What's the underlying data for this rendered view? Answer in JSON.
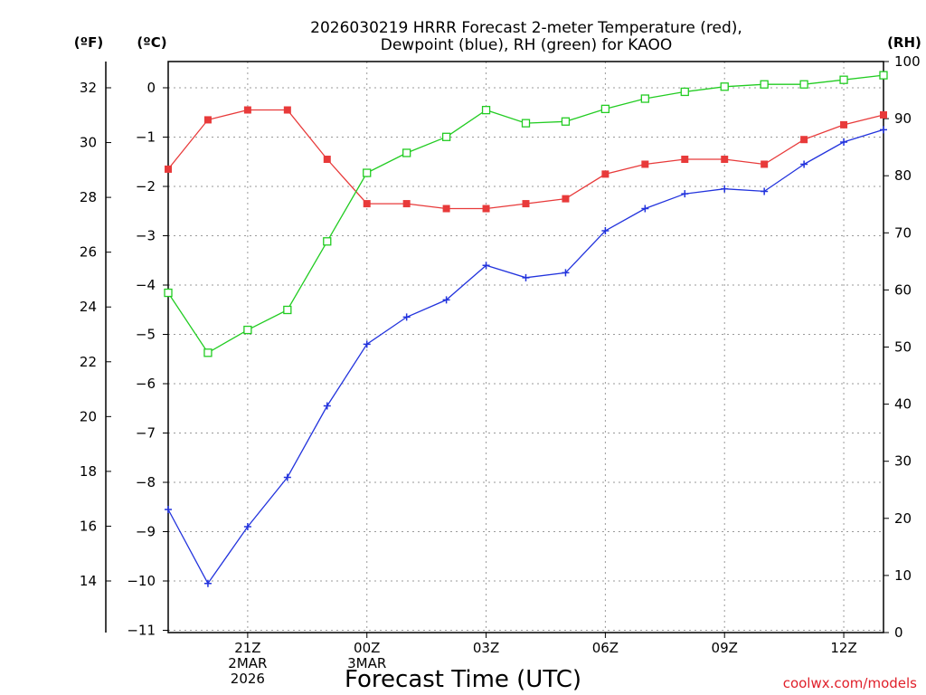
{
  "chart_data": {
    "type": "line",
    "title_line1": "2026030219 HRRR Forecast 2-meter Temperature (red),",
    "title_line2": "Dewpoint (blue), RH (green) for KAOO",
    "xlabel": "Forecast Time (UTC)",
    "unit_f": "(ºF)",
    "unit_c": "(ºC)",
    "unit_rh": "(RH)",
    "credit": "coolwx.com/models",
    "x_hours": [
      19,
      20,
      21,
      22,
      23,
      24,
      25,
      26,
      27,
      28,
      29,
      30,
      31,
      32,
      33,
      34,
      35,
      36,
      37
    ],
    "xlim": [
      19,
      37
    ],
    "x_ticks": [
      {
        "hour": 21,
        "lines": [
          "21Z",
          "2MAR",
          "2026"
        ]
      },
      {
        "hour": 24,
        "lines": [
          "00Z",
          "3MAR"
        ]
      },
      {
        "hour": 27,
        "lines": [
          "03Z"
        ]
      },
      {
        "hour": 30,
        "lines": [
          "06Z"
        ]
      },
      {
        "hour": 33,
        "lines": [
          "09Z"
        ]
      },
      {
        "hour": 36,
        "lines": [
          "12Z"
        ]
      }
    ],
    "y_c_lim": [
      -11.0,
      0.5
    ],
    "y_c_ticks": [
      "0",
      "−1",
      "−2",
      "−3",
      "−4",
      "−5",
      "−6",
      "−7",
      "−8",
      "−9",
      "−10",
      "−11"
    ],
    "y_f_ticks": [
      "32",
      "30",
      "28",
      "26",
      "24",
      "22",
      "20",
      "18",
      "16",
      "14"
    ],
    "y_rh_ticks": [
      "100",
      "90",
      "80",
      "70",
      "60",
      "50",
      "40",
      "30",
      "20",
      "10",
      "0"
    ],
    "y_rh_lim": [
      0,
      100
    ],
    "series": [
      {
        "key": "temperature",
        "axis": "c",
        "color": "#e83a3a",
        "marker": "filled-square",
        "values": [
          -1.65,
          -0.65,
          -0.45,
          -0.45,
          -1.45,
          -2.35,
          -2.35,
          -2.45,
          -2.45,
          -2.35,
          -2.25,
          -1.75,
          -1.55,
          -1.45,
          -1.45,
          -1.55,
          -1.05,
          -0.75,
          -0.55
        ]
      },
      {
        "key": "dewpoint",
        "axis": "c",
        "color": "#2233dd",
        "marker": "plus",
        "values": [
          -8.55,
          -10.05,
          -8.9,
          -7.9,
          -6.45,
          -5.2,
          -4.65,
          -4.3,
          -3.6,
          -3.85,
          -3.75,
          -2.9,
          -2.45,
          -2.15,
          -2.05,
          -2.1,
          -1.55,
          -1.1,
          -0.85
        ]
      },
      {
        "key": "rh",
        "axis": "rh",
        "color": "#22cc22",
        "marker": "open-square",
        "values": [
          59.5,
          49.0,
          53.0,
          56.5,
          68.5,
          80.5,
          84.0,
          86.8,
          91.5,
          89.2,
          89.5,
          91.7,
          93.5,
          94.7,
          95.6,
          96.0,
          96.0,
          96.8,
          97.6
        ]
      }
    ]
  }
}
